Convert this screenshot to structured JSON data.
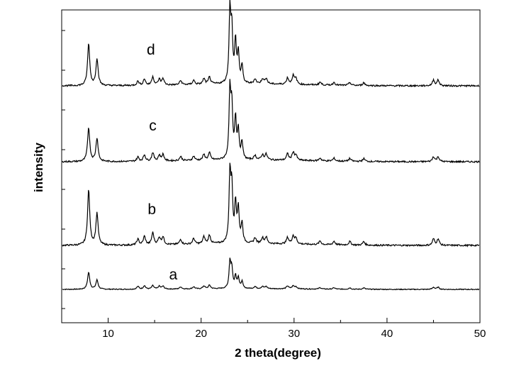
{
  "chart_data": {
    "type": "line",
    "title": "",
    "xlabel": "2 theta(degree)",
    "ylabel": "intensity",
    "xlim": [
      5,
      50
    ],
    "x_ticks": [
      10,
      20,
      30,
      40,
      50
    ],
    "y_tick_labels": "none",
    "grid": false,
    "legend": "none",
    "line_color": "#000000",
    "peaks_note": "shared peak positions (2θ)",
    "peak_positions": [
      7.9,
      8.8,
      13.2,
      13.9,
      14.8,
      15.5,
      15.9,
      17.8,
      19.2,
      20.3,
      20.9,
      23.1,
      23.3,
      23.7,
      24.0,
      24.4,
      25.8,
      26.6,
      27.0,
      29.3,
      29.9,
      30.2,
      32.8,
      34.3,
      36.0,
      37.5,
      45.0,
      45.5
    ],
    "series": [
      {
        "name": "a",
        "offset": 0,
        "peak_heights": [
          24,
          13,
          4,
          5,
          5,
          4,
          4,
          3,
          3,
          4,
          5,
          37,
          27,
          17,
          15,
          10,
          3,
          3,
          3,
          4,
          4,
          3,
          2,
          2,
          2,
          2,
          3,
          3
        ]
      },
      {
        "name": "b",
        "offset": 62,
        "peak_heights": [
          78,
          45,
          8,
          12,
          17,
          10,
          11,
          7,
          8,
          10,
          12,
          95,
          75,
          55,
          48,
          28,
          8,
          8,
          9,
          9,
          11,
          8,
          5,
          5,
          5,
          5,
          9,
          9
        ]
      },
      {
        "name": "c",
        "offset": 180,
        "peak_heights": [
          48,
          33,
          6,
          9,
          12,
          8,
          9,
          6,
          6,
          8,
          10,
          95,
          70,
          56,
          40,
          24,
          6,
          7,
          8,
          9,
          11,
          7,
          4,
          4,
          4,
          4,
          7,
          7
        ]
      },
      {
        "name": "d",
        "offset": 287,
        "peak_heights": [
          59,
          38,
          6,
          9,
          12,
          8,
          9,
          6,
          6,
          8,
          10,
          100,
          72,
          58,
          42,
          25,
          7,
          7,
          8,
          9,
          12,
          8,
          4,
          4,
          4,
          4,
          8,
          8
        ]
      }
    ]
  }
}
